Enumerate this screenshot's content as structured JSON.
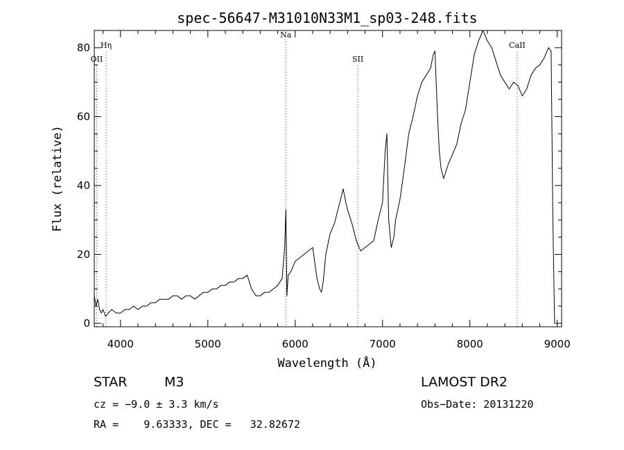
{
  "chart_data": {
    "type": "line",
    "title": "spec-56647-M31010N33M1_sp03-248.fits",
    "xlabel": "Wavelength (Å)",
    "ylabel": "Flux (relative)",
    "xlim": [
      3700,
      9050
    ],
    "ylim": [
      -1,
      85
    ],
    "xticks": [
      4000,
      5000,
      6000,
      7000,
      8000,
      9000
    ],
    "yticks": [
      0,
      20,
      40,
      60,
      80
    ],
    "grid": false,
    "line_color": "#000000",
    "series": [
      {
        "x": [
          3700,
          3720,
          3740,
          3760,
          3780,
          3800,
          3830,
          3860,
          3900,
          3950,
          4000,
          4050,
          4100,
          4150,
          4200,
          4250,
          4300,
          4350,
          4400,
          4450,
          4500,
          4550,
          4600,
          4650,
          4700,
          4750,
          4800,
          4850,
          4900,
          4950,
          5000,
          5050,
          5100,
          5150,
          5200,
          5250,
          5300,
          5350,
          5400,
          5450,
          5500,
          5550,
          5600,
          5650,
          5700,
          5750,
          5800,
          5850,
          5880,
          5893,
          5905,
          5920,
          5950,
          6000,
          6050,
          6100,
          6150,
          6200,
          6250,
          6280,
          6300,
          6320,
          6350,
          6400,
          6450,
          6500,
          6530,
          6550,
          6580,
          6600,
          6650,
          6700,
          6750,
          6800,
          6850,
          6900,
          6950,
          7000,
          7030,
          7050,
          7070,
          7100,
          7130,
          7150,
          7200,
          7250,
          7300,
          7350,
          7400,
          7450,
          7500,
          7550,
          7580,
          7600,
          7630,
          7650,
          7670,
          7700,
          7750,
          7800,
          7850,
          7900,
          7950,
          8000,
          8050,
          8100,
          8150,
          8200,
          8250,
          8300,
          8350,
          8400,
          8450,
          8500,
          8550,
          8600,
          8650,
          8700,
          8750,
          8800,
          8850,
          8900,
          8930,
          8950,
          8970
        ],
        "y": [
          8,
          5,
          7,
          4,
          3,
          4,
          2,
          3,
          4,
          3,
          3,
          4,
          4,
          5,
          4,
          5,
          5,
          6,
          6,
          7,
          7,
          7,
          8,
          8,
          7,
          8,
          8,
          7,
          8,
          9,
          9,
          10,
          10,
          11,
          11,
          12,
          12,
          13,
          13,
          14,
          10,
          8,
          8,
          9,
          9,
          10,
          11,
          13,
          22,
          33,
          8,
          14,
          15,
          18,
          19,
          20,
          21,
          22,
          13,
          10,
          9,
          12,
          20,
          26,
          29,
          34,
          37,
          39,
          35,
          33,
          29,
          24,
          21,
          22,
          23,
          24,
          30,
          35,
          50,
          55,
          30,
          22,
          25,
          30,
          36,
          45,
          55,
          60,
          66,
          70,
          72,
          74,
          78,
          79,
          60,
          50,
          45,
          42,
          46,
          49,
          52,
          58,
          62,
          70,
          78,
          82,
          85,
          82,
          80,
          76,
          72,
          70,
          68,
          70,
          69,
          66,
          68,
          72,
          74,
          75,
          77,
          80,
          79,
          30,
          0
        ]
      }
    ],
    "annotations": [
      {
        "label": "Hη",
        "x": 3835,
        "y": 80
      },
      {
        "label": "OII",
        "x": 3727,
        "y": 76
      },
      {
        "label": "Na",
        "x": 5893,
        "y": 83
      },
      {
        "label": "SII",
        "x": 6717,
        "y": 76
      },
      {
        "label": "CaII",
        "x": 8542,
        "y": 80
      }
    ]
  },
  "info": {
    "object_type": "STAR",
    "subclass": "M3",
    "survey": "LAMOST DR2",
    "cz": "cz = −9.0 ± 3.3 km/s",
    "obs_date": "Obs−Date: 20131220",
    "radec": "RA =    9.63333, DEC =   32.82672"
  }
}
